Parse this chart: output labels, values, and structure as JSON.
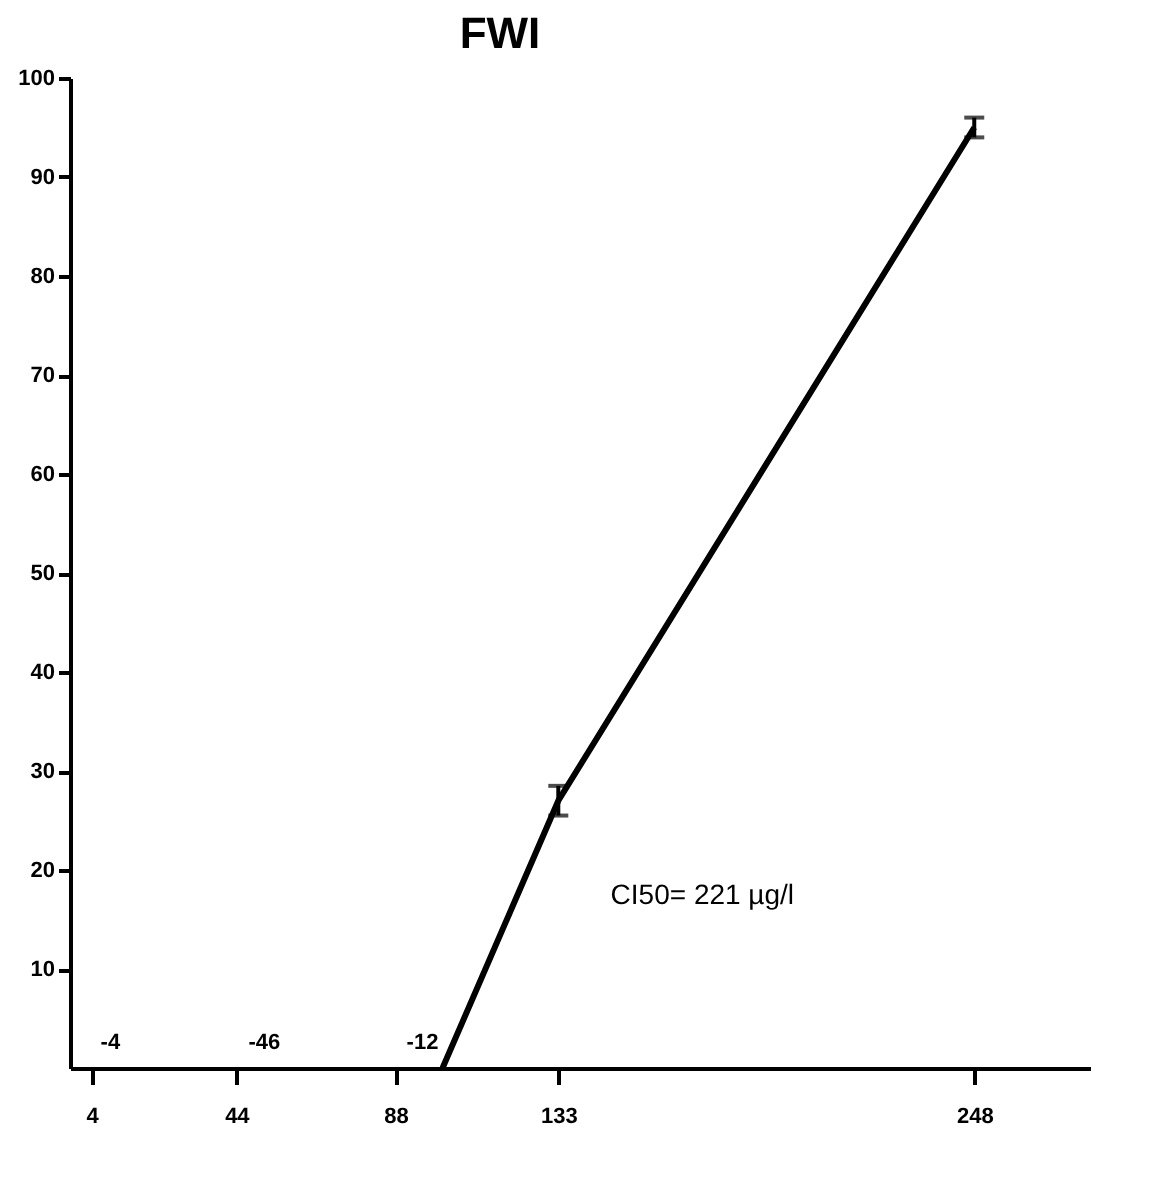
{
  "chart_data": {
    "type": "line",
    "title": "FWI",
    "series": [
      {
        "color": "#000000",
        "x": [
          101,
          133,
          248
        ],
        "values": [
          0,
          27,
          95
        ],
        "errors": [
          null,
          1.5,
          1
        ]
      }
    ],
    "xlim": [
      -2,
      280
    ],
    "xticks": [
      4,
      44,
      88,
      133,
      248
    ],
    "ylim": [
      0,
      100
    ],
    "yticks": [
      10,
      20,
      30,
      40,
      50,
      60,
      70,
      80,
      90,
      100
    ],
    "annotations": [
      "-4",
      "-46",
      "-12",
      "CI50= 221 µg/l"
    ],
    "grid": false,
    "marker": "none",
    "line_style": "solid"
  }
}
